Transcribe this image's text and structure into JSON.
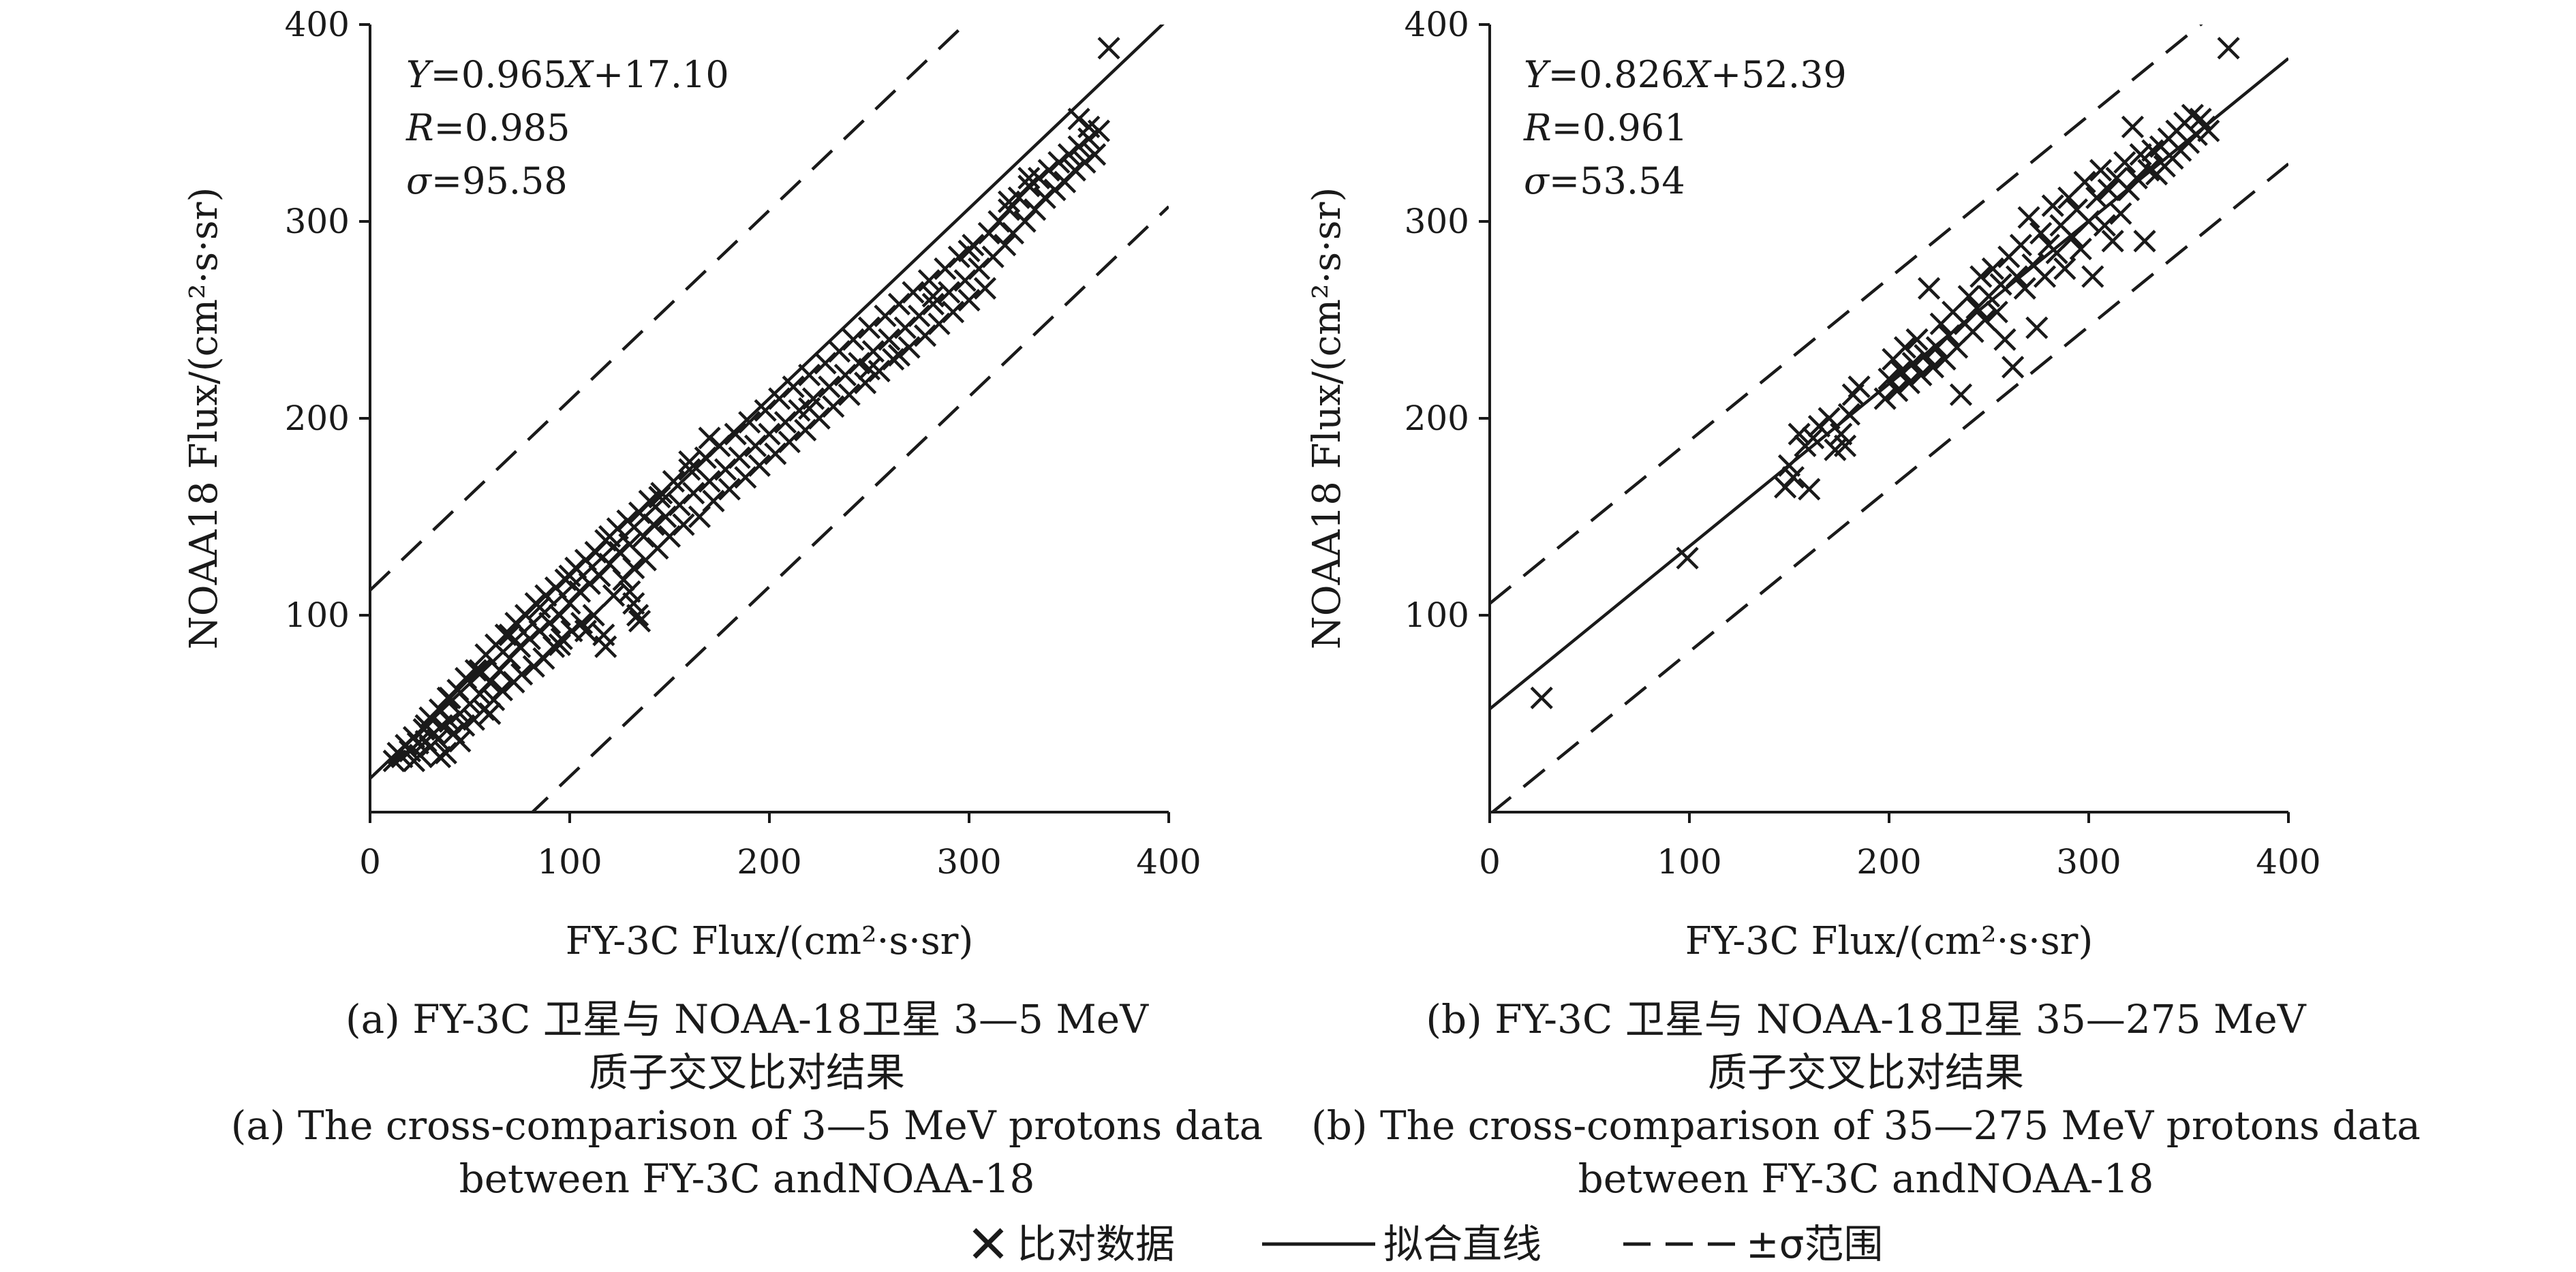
{
  "chart_data": [
    {
      "type": "scatter",
      "panel": "a",
      "xlabel": "FY-3C Flux/(cm²·s·sr)",
      "ylabel": "NOAA18 Flux/(cm²·s·sr)",
      "xlim": [
        0,
        400
      ],
      "ylim": [
        0,
        400
      ],
      "xticks": [
        "0",
        "100",
        "200",
        "300",
        "400"
      ],
      "yticks": [
        "100",
        "200",
        "300",
        "400"
      ],
      "equation": {
        "y_sym": "Y",
        "mid": "=0.965",
        "x_sym": "X",
        "tail": "+17.10"
      },
      "r_label": {
        "sym": "R",
        "val": "=0.985"
      },
      "sigma_label": {
        "sym": "σ",
        "val": "=95.58"
      },
      "fit": {
        "slope": 0.965,
        "intercept": 17.1
      },
      "sigma": 95.58,
      "caption": [
        "(a) FY-3C 卫星与 NOAA-18卫星 3—5 MeV",
        "质子交叉比对结果",
        "(a) The cross-comparison of 3—5 MeV protons data",
        "between FY-3C andNOAA-18"
      ],
      "points": [
        [
          12,
          26
        ],
        [
          14,
          30
        ],
        [
          16,
          28
        ],
        [
          18,
          34
        ],
        [
          20,
          31
        ],
        [
          22,
          38
        ],
        [
          24,
          35
        ],
        [
          25,
          29
        ],
        [
          27,
          42
        ],
        [
          28,
          36
        ],
        [
          30,
          33
        ],
        [
          30,
          48
        ],
        [
          32,
          40
        ],
        [
          34,
          37
        ],
        [
          35,
          52
        ],
        [
          36,
          44
        ],
        [
          38,
          30
        ],
        [
          39,
          58
        ],
        [
          40,
          46
        ],
        [
          42,
          40
        ],
        [
          44,
          62
        ],
        [
          45,
          50
        ],
        [
          47,
          44
        ],
        [
          48,
          68
        ],
        [
          50,
          55
        ],
        [
          52,
          47
        ],
        [
          53,
          72
        ],
        [
          55,
          60
        ],
        [
          57,
          52
        ],
        [
          58,
          80
        ],
        [
          60,
          66
        ],
        [
          62,
          57
        ],
        [
          63,
          85
        ],
        [
          65,
          72
        ],
        [
          66,
          62
        ],
        [
          68,
          90
        ],
        [
          70,
          78
        ],
        [
          72,
          66
        ],
        [
          73,
          96
        ],
        [
          75,
          84
        ],
        [
          76,
          70
        ],
        [
          78,
          100
        ],
        [
          80,
          88
        ],
        [
          82,
          74
        ],
        [
          83,
          106
        ],
        [
          85,
          92
        ],
        [
          87,
          78
        ],
        [
          88,
          110
        ],
        [
          90,
          96
        ],
        [
          92,
          84
        ],
        [
          93,
          114
        ],
        [
          95,
          100
        ],
        [
          96,
          88
        ],
        [
          98,
          118
        ],
        [
          100,
          106
        ],
        [
          101,
          92
        ],
        [
          103,
          124
        ],
        [
          105,
          112
        ],
        [
          106,
          96
        ],
        [
          108,
          128
        ],
        [
          110,
          116
        ],
        [
          112,
          100
        ],
        [
          113,
          132
        ],
        [
          115,
          120
        ],
        [
          117,
          90
        ],
        [
          118,
          138
        ],
        [
          120,
          126
        ],
        [
          122,
          110
        ],
        [
          124,
          144
        ],
        [
          125,
          132
        ],
        [
          127,
          118
        ],
        [
          129,
          148
        ],
        [
          130,
          136
        ],
        [
          132,
          124
        ],
        [
          134,
          100
        ],
        [
          135,
          152
        ],
        [
          137,
          140
        ],
        [
          138,
          128
        ],
        [
          140,
          158
        ],
        [
          142,
          146
        ],
        [
          144,
          134
        ],
        [
          146,
          162
        ],
        [
          148,
          150
        ],
        [
          150,
          140
        ],
        [
          152,
          168
        ],
        [
          155,
          156
        ],
        [
          157,
          146
        ],
        [
          160,
          174
        ],
        [
          162,
          162
        ],
        [
          165,
          150
        ],
        [
          168,
          180
        ],
        [
          170,
          168
        ],
        [
          172,
          158
        ],
        [
          175,
          186
        ],
        [
          178,
          174
        ],
        [
          180,
          164
        ],
        [
          183,
          192
        ],
        [
          185,
          180
        ],
        [
          188,
          170
        ],
        [
          190,
          198
        ],
        [
          193,
          186
        ],
        [
          195,
          176
        ],
        [
          198,
          204
        ],
        [
          200,
          192
        ],
        [
          203,
          182
        ],
        [
          205,
          210
        ],
        [
          208,
          198
        ],
        [
          210,
          188
        ],
        [
          212,
          216
        ],
        [
          215,
          204
        ],
        [
          218,
          194
        ],
        [
          220,
          222
        ],
        [
          222,
          210
        ],
        [
          225,
          200
        ],
        [
          228,
          228
        ],
        [
          230,
          216
        ],
        [
          232,
          206
        ],
        [
          235,
          234
        ],
        [
          238,
          222
        ],
        [
          240,
          212
        ],
        [
          242,
          240
        ],
        [
          245,
          228
        ],
        [
          248,
          218
        ],
        [
          250,
          246
        ],
        [
          252,
          234
        ],
        [
          255,
          224
        ],
        [
          258,
          252
        ],
        [
          260,
          240
        ],
        [
          262,
          230
        ],
        [
          265,
          258
        ],
        [
          268,
          246
        ],
        [
          270,
          236
        ],
        [
          272,
          264
        ],
        [
          275,
          252
        ],
        [
          278,
          242
        ],
        [
          280,
          270
        ],
        [
          282,
          258
        ],
        [
          285,
          248
        ],
        [
          288,
          276
        ],
        [
          290,
          264
        ],
        [
          292,
          254
        ],
        [
          295,
          282
        ],
        [
          298,
          270
        ],
        [
          300,
          260
        ],
        [
          302,
          288
        ],
        [
          305,
          276
        ],
        [
          308,
          266
        ],
        [
          310,
          294
        ],
        [
          312,
          282
        ],
        [
          315,
          300
        ],
        [
          318,
          288
        ],
        [
          320,
          306
        ],
        [
          322,
          294
        ],
        [
          325,
          312
        ],
        [
          328,
          300
        ],
        [
          330,
          318
        ],
        [
          333,
          306
        ],
        [
          335,
          322
        ],
        [
          338,
          312
        ],
        [
          340,
          326
        ],
        [
          343,
          316
        ],
        [
          345,
          330
        ],
        [
          348,
          320
        ],
        [
          350,
          334
        ],
        [
          353,
          326
        ],
        [
          355,
          338
        ],
        [
          358,
          330
        ],
        [
          360,
          342
        ],
        [
          363,
          334
        ],
        [
          365,
          346
        ],
        [
          135,
          97
        ],
        [
          132,
          106
        ],
        [
          130,
          112
        ],
        [
          118,
          84
        ],
        [
          108,
          92
        ],
        [
          95,
          85
        ],
        [
          60,
          50
        ],
        [
          45,
          36
        ],
        [
          35,
          28
        ],
        [
          22,
          26
        ],
        [
          220,
          205
        ],
        [
          250,
          225
        ],
        [
          265,
          232
        ],
        [
          282,
          262
        ],
        [
          300,
          285
        ],
        [
          320,
          310
        ],
        [
          330,
          322
        ],
        [
          355,
          352
        ],
        [
          360,
          348
        ],
        [
          370,
          388
        ],
        [
          170,
          190
        ],
        [
          160,
          178
        ],
        [
          145,
          160
        ],
        [
          120,
          140
        ],
        [
          100,
          120
        ],
        [
          85,
          104
        ],
        [
          70,
          90
        ],
        [
          55,
          72
        ],
        [
          40,
          58
        ],
        [
          28,
          44
        ]
      ]
    },
    {
      "type": "scatter",
      "panel": "b",
      "xlabel": "FY-3C Flux/(cm²·s·sr)",
      "ylabel": "NOAA18 Flux/(cm²·s·sr)",
      "xlim": [
        0,
        400
      ],
      "ylim": [
        0,
        400
      ],
      "xticks": [
        "0",
        "100",
        "200",
        "300",
        "400"
      ],
      "yticks": [
        "100",
        "200",
        "300",
        "400"
      ],
      "equation": {
        "y_sym": "Y",
        "mid": "=0.826",
        "x_sym": "X",
        "tail": "+52.39"
      },
      "r_label": {
        "sym": "R",
        "val": "=0.961"
      },
      "sigma_label": {
        "sym": "σ",
        "val": "=53.54"
      },
      "fit": {
        "slope": 0.826,
        "intercept": 52.39
      },
      "sigma": 53.54,
      "caption": [
        "(b) FY-3C 卫星与 NOAA-18卫星 35—275 MeV",
        "质子交叉比对结果",
        "(b) The cross-comparison of 35—275 MeV protons data",
        "between FY-3C andNOAA-18"
      ],
      "points": [
        [
          26,
          58
        ],
        [
          99,
          129
        ],
        [
          148,
          165
        ],
        [
          150,
          176
        ],
        [
          152,
          170
        ],
        [
          155,
          192
        ],
        [
          158,
          186
        ],
        [
          160,
          164
        ],
        [
          162,
          190
        ],
        [
          165,
          196
        ],
        [
          170,
          200
        ],
        [
          173,
          184
        ],
        [
          176,
          192
        ],
        [
          178,
          186
        ],
        [
          180,
          202
        ],
        [
          182,
          212
        ],
        [
          185,
          216
        ],
        [
          198,
          210
        ],
        [
          200,
          220
        ],
        [
          202,
          230
        ],
        [
          204,
          214
        ],
        [
          206,
          224
        ],
        [
          208,
          236
        ],
        [
          210,
          218
        ],
        [
          212,
          228
        ],
        [
          214,
          240
        ],
        [
          216,
          222
        ],
        [
          218,
          232
        ],
        [
          220,
          266
        ],
        [
          222,
          226
        ],
        [
          224,
          236
        ],
        [
          226,
          248
        ],
        [
          228,
          230
        ],
        [
          230,
          242
        ],
        [
          232,
          254
        ],
        [
          234,
          236
        ],
        [
          236,
          212
        ],
        [
          238,
          248
        ],
        [
          240,
          262
        ],
        [
          242,
          244
        ],
        [
          244,
          256
        ],
        [
          246,
          272
        ],
        [
          248,
          250
        ],
        [
          250,
          262
        ],
        [
          252,
          276
        ],
        [
          254,
          254
        ],
        [
          256,
          268
        ],
        [
          258,
          240
        ],
        [
          260,
          282
        ],
        [
          262,
          226
        ],
        [
          264,
          272
        ],
        [
          266,
          288
        ],
        [
          268,
          266
        ],
        [
          270,
          302
        ],
        [
          272,
          278
        ],
        [
          274,
          246
        ],
        [
          276,
          294
        ],
        [
          278,
          272
        ],
        [
          280,
          288
        ],
        [
          282,
          308
        ],
        [
          284,
          284
        ],
        [
          286,
          298
        ],
        [
          288,
          276
        ],
        [
          290,
          312
        ],
        [
          292,
          292
        ],
        [
          294,
          306
        ],
        [
          296,
          286
        ],
        [
          298,
          320
        ],
        [
          300,
          300
        ],
        [
          302,
          272
        ],
        [
          304,
          312
        ],
        [
          306,
          326
        ],
        [
          308,
          298
        ],
        [
          310,
          316
        ],
        [
          312,
          290
        ],
        [
          314,
          322
        ],
        [
          316,
          304
        ],
        [
          318,
          330
        ],
        [
          320,
          316
        ],
        [
          322,
          348
        ],
        [
          324,
          322
        ],
        [
          326,
          334
        ],
        [
          328,
          290
        ],
        [
          330,
          326
        ],
        [
          332,
          336
        ],
        [
          334,
          324
        ],
        [
          336,
          338
        ],
        [
          338,
          328
        ],
        [
          340,
          342
        ],
        [
          342,
          332
        ],
        [
          344,
          346
        ],
        [
          346,
          336
        ],
        [
          348,
          350
        ],
        [
          350,
          340
        ],
        [
          352,
          354
        ],
        [
          354,
          344
        ],
        [
          356,
          352
        ],
        [
          358,
          348
        ],
        [
          360,
          346
        ],
        [
          370,
          388
        ]
      ]
    }
  ],
  "legend": [
    {
      "label": "比对数据",
      "kind": "marker-x"
    },
    {
      "label": "拟合直线",
      "kind": "solid-line"
    },
    {
      "label": "±σ范围",
      "kind": "dashed-line"
    }
  ],
  "colors": {
    "ink": "#1a1a1a",
    "background": "#ffffff"
  }
}
